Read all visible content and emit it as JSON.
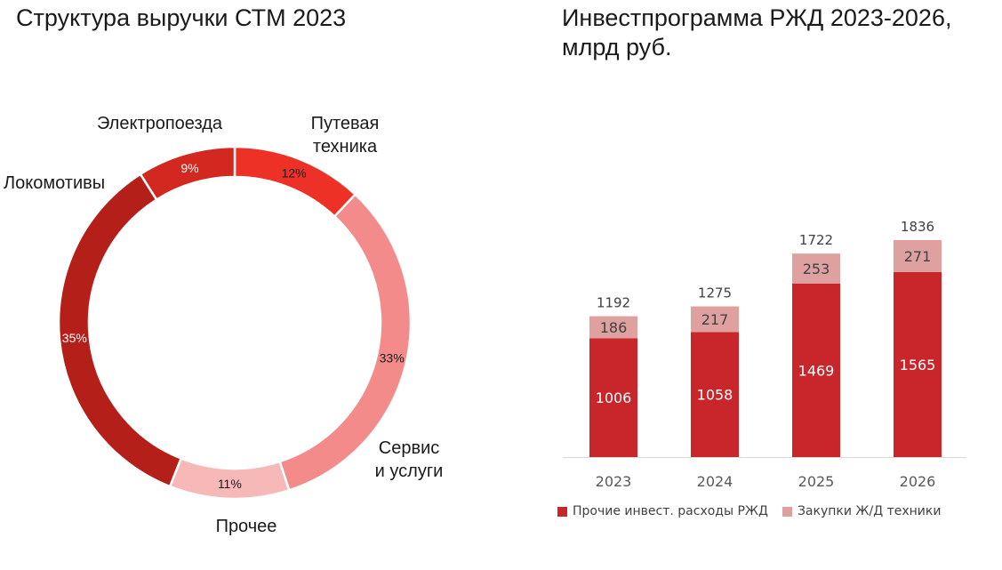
{
  "titles": {
    "left": "Структура выручки СТМ 2023",
    "right_line1": "Инвестпрограмма РЖД 2023-2026,",
    "right_line2": "млрд руб."
  },
  "chart_data": [
    {
      "type": "pie",
      "variant": "donut",
      "title": "Структура выручки СТМ 2023",
      "slices": [
        {
          "label": "Путевая техника",
          "label_lines": [
            "Путевая",
            "техника"
          ],
          "value": 12,
          "display": "12%",
          "color": "#ee3126"
        },
        {
          "label": "Сервис и услуги",
          "label_lines": [
            "Сервис",
            "и услуги"
          ],
          "value": 33,
          "display": "33%",
          "color": "#f28b8a"
        },
        {
          "label": "Прочее",
          "label_lines": [
            "Прочее"
          ],
          "value": 11,
          "display": "11%",
          "color": "#f6b9b8"
        },
        {
          "label": "Локомотивы",
          "label_lines": [
            "Локомотивы"
          ],
          "value": 35,
          "display": "35%",
          "color": "#b51f1a"
        },
        {
          "label": "Электропоезда",
          "label_lines": [
            "Электропоезда"
          ],
          "value": 9,
          "display": "9%",
          "color": "#d32820"
        }
      ]
    },
    {
      "type": "bar",
      "stacked": true,
      "title": "Инвестпрограмма РЖД 2023-2026, млрд руб.",
      "categories": [
        "2023",
        "2024",
        "2025",
        "2026"
      ],
      "series": [
        {
          "name": "Прочие инвест. расходы РЖД",
          "values": [
            1006,
            1058,
            1469,
            1565
          ],
          "color": "#c8262a"
        },
        {
          "name": "Закупки Ж/Д техники",
          "values": [
            186,
            217,
            253,
            271
          ],
          "color": "#dfa0a0"
        }
      ],
      "totals": [
        1192,
        1275,
        1722,
        1836
      ],
      "legend_position": "bottom",
      "grid": false
    }
  ]
}
